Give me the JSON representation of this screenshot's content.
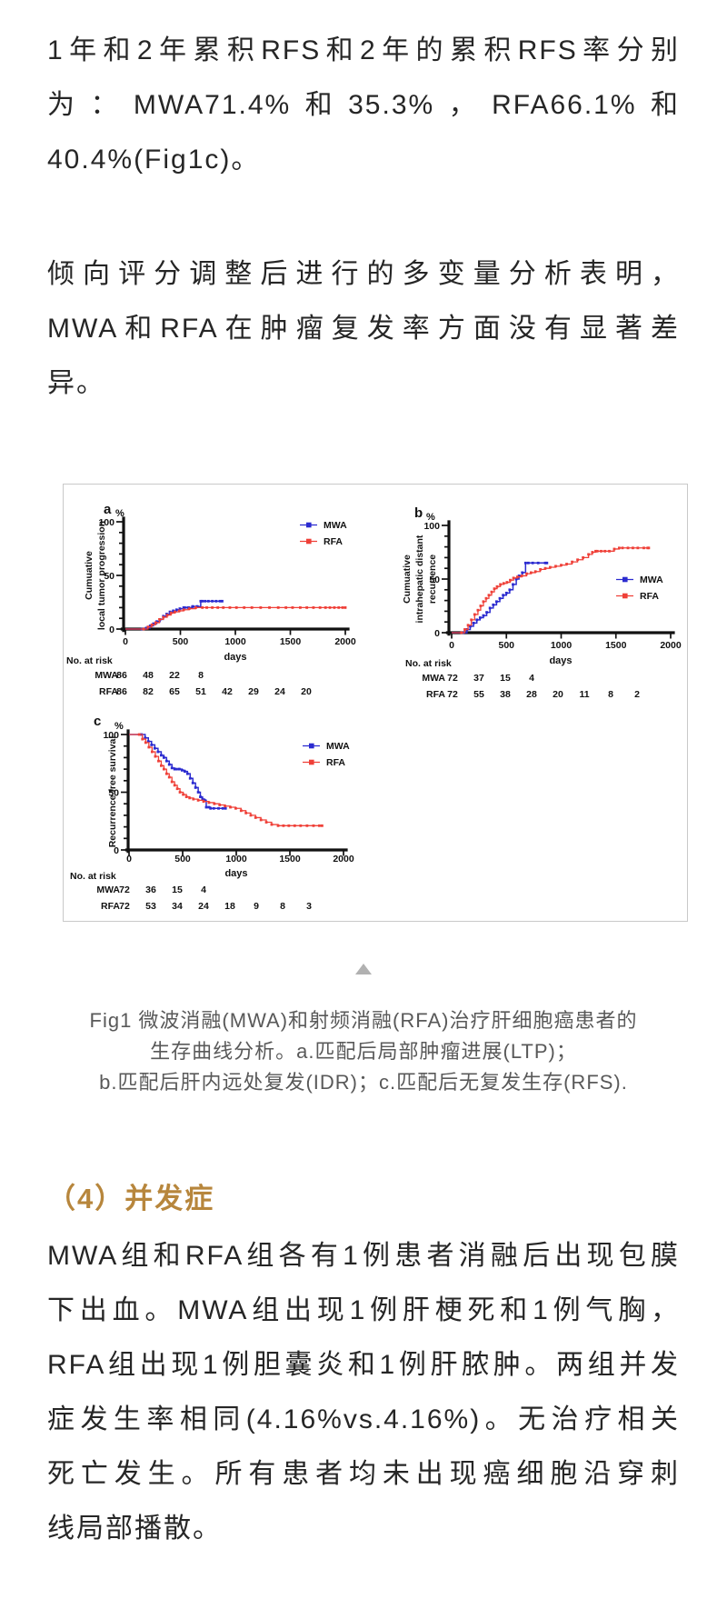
{
  "page": {
    "background": "#ffffff",
    "body_text_color": "#262626",
    "heading_color": "#b7863c",
    "caption_color": "#595959"
  },
  "paragraphs": {
    "rfs_rates": {
      "lines": [
        "1年和2年累积RFS和2年的累积RFS率分别",
        "为：MWA71.4%和35.3%，RFA66.1%和",
        "40.4%(Fig1c)。"
      ]
    },
    "multivariate": {
      "lines": [
        "倾向评分调整后进行的多变量分析表明，",
        "MWA和RFA在肿瘤复发率方面没有显著差",
        "异。"
      ]
    },
    "complications": {
      "lines": [
        "MWA组和RFA组各有1例患者消融后出现包膜",
        "下出血。MWA组出现1例肝梗死和1例气胸，",
        "RFA组出现1例胆囊炎和1例肝脓肿。两组并发",
        "症发生率相同(4.16%vs.4.16%)。无治疗相关",
        "死亡发生。所有患者均未出现癌细胞沿穿刺",
        "线局部播散。"
      ]
    }
  },
  "section": {
    "heading": "（4）并发症"
  },
  "figure_caption": {
    "lines": [
      "Fig1 微波消融(MWA)和射频消融(RFA)治疗肝细胞癌患者的",
      "生存曲线分析。a.匹配后局部肿瘤进展(LTP)；",
      "b.匹配后肝内远处复发(IDR)；c.匹配后无复发生存(RFS)."
    ]
  },
  "chart_data": {
    "type": "line",
    "style": "kaplan-meier step curves, GraphPad look",
    "x_ticks": [
      0,
      500,
      1000,
      1500,
      2000
    ],
    "y_ticks": [
      0,
      50,
      100
    ],
    "xlabel": "days",
    "y_unit": "%",
    "xlim": [
      0,
      2000
    ],
    "ylim": [
      0,
      100
    ],
    "at_risk_title": "No. at risk",
    "colors": {
      "MWA": "#2b2bd0",
      "RFA": "#ef4038"
    },
    "panels": [
      {
        "letter": "a",
        "ylabel_lines": [
          "Cumuative",
          "local tumor progression"
        ],
        "legend": [
          "MWA",
          "RFA"
        ],
        "series": [
          {
            "name": "MWA",
            "steps": [
              [
                0,
                0
              ],
              [
                150,
                0
              ],
              [
                190,
                1
              ],
              [
                225,
                3
              ],
              [
                255,
                5
              ],
              [
                285,
                7
              ],
              [
                315,
                9
              ],
              [
                345,
                12
              ],
              [
                375,
                14
              ],
              [
                405,
                16
              ],
              [
                435,
                17
              ],
              [
                465,
                18
              ],
              [
                495,
                19
              ],
              [
                530,
                20
              ],
              [
                570,
                20
              ],
              [
                610,
                21
              ],
              [
                650,
                21
              ],
              [
                685,
                26
              ],
              [
                880,
                26
              ]
            ],
            "censors": [
              540,
              575,
              615,
              655,
              700,
              725,
              755,
              790,
              825,
              860
            ]
          },
          {
            "name": "RFA",
            "steps": [
              [
                0,
                0
              ],
              [
                165,
                0
              ],
              [
                205,
                2
              ],
              [
                240,
                4
              ],
              [
                275,
                6
              ],
              [
                310,
                9
              ],
              [
                345,
                11
              ],
              [
                380,
                13
              ],
              [
                415,
                15
              ],
              [
                450,
                16
              ],
              [
                490,
                17
              ],
              [
                530,
                18
              ],
              [
                580,
                19
              ],
              [
                640,
                20
              ],
              [
                2000,
                20
              ]
            ],
            "censors": [
              700,
              740,
              790,
              840,
              890,
              950,
              1010,
              1080,
              1150,
              1230,
              1310,
              1390,
              1460,
              1520,
              1590,
              1650,
              1710,
              1770,
              1820,
              1860,
              1900,
              1940,
              1975
            ]
          }
        ],
        "at_risk": {
          "rows": [
            {
              "name": "MWA",
              "values": [
                86,
                48,
                22,
                8
              ]
            },
            {
              "name": "RFA",
              "values": [
                86,
                82,
                65,
                51,
                42,
                29,
                24,
                20
              ]
            }
          ]
        }
      },
      {
        "letter": "b",
        "ylabel_lines": [
          "Cumuative",
          "intrahepatic distant",
          "recurrence"
        ],
        "legend": [
          "MWA",
          "RFA"
        ],
        "series": [
          {
            "name": "MWA",
            "steps": [
              [
                0,
                0
              ],
              [
                105,
                0
              ],
              [
                140,
                3
              ],
              [
                170,
                6
              ],
              [
                200,
                9
              ],
              [
                230,
                12
              ],
              [
                260,
                14
              ],
              [
                290,
                16
              ],
              [
                320,
                19
              ],
              [
                350,
                23
              ],
              [
                380,
                26
              ],
              [
                410,
                29
              ],
              [
                440,
                32
              ],
              [
                470,
                35
              ],
              [
                500,
                37
              ],
              [
                530,
                40
              ],
              [
                560,
                45
              ],
              [
                590,
                50
              ],
              [
                615,
                53
              ],
              [
                645,
                56
              ],
              [
                675,
                65
              ],
              [
                870,
                65
              ]
            ],
            "censors": [
              700,
              740,
              790,
              855
            ]
          },
          {
            "name": "RFA",
            "steps": [
              [
                0,
                0
              ],
              [
                90,
                0
              ],
              [
                120,
                3
              ],
              [
                150,
                7
              ],
              [
                180,
                12
              ],
              [
                210,
                17
              ],
              [
                240,
                21
              ],
              [
                265,
                25
              ],
              [
                290,
                29
              ],
              [
                315,
                32
              ],
              [
                340,
                35
              ],
              [
                365,
                38
              ],
              [
                390,
                41
              ],
              [
                415,
                43
              ],
              [
                445,
                45
              ],
              [
                475,
                46
              ],
              [
                505,
                47
              ],
              [
                535,
                49
              ],
              [
                565,
                51
              ],
              [
                600,
                52
              ],
              [
                640,
                53
              ],
              [
                685,
                55
              ],
              [
                725,
                56
              ],
              [
                765,
                57
              ],
              [
                810,
                59
              ],
              [
                855,
                60
              ],
              [
                900,
                61
              ],
              [
                950,
                62
              ],
              [
                1000,
                63
              ],
              [
                1050,
                64
              ],
              [
                1100,
                66
              ],
              [
                1150,
                68
              ],
              [
                1200,
                70
              ],
              [
                1250,
                73
              ],
              [
                1285,
                75
              ],
              [
                1315,
                76
              ],
              [
                1440,
                76
              ],
              [
                1485,
                78
              ],
              [
                1530,
                79
              ],
              [
                1800,
                79
              ]
            ],
            "censors": [
              1330,
              1365,
              1400,
              1560,
              1610,
              1655,
              1700,
              1755,
              1790
            ]
          }
        ],
        "at_risk": {
          "rows": [
            {
              "name": "MWA",
              "values": [
                72,
                37,
                15,
                4
              ]
            },
            {
              "name": "RFA",
              "values": [
                72,
                55,
                38,
                28,
                20,
                11,
                8,
                2
              ]
            }
          ]
        }
      },
      {
        "letter": "c",
        "ylabel_lines": [
          "Recurrence free survival"
        ],
        "legend": [
          "MWA",
          "RFA"
        ],
        "series": [
          {
            "name": "MWA",
            "steps": [
              [
                0,
                100
              ],
              [
                115,
                100
              ],
              [
                150,
                97
              ],
              [
                180,
                94
              ],
              [
                210,
                91
              ],
              [
                240,
                88
              ],
              [
                270,
                85
              ],
              [
                300,
                82
              ],
              [
                325,
                80
              ],
              [
                350,
                77
              ],
              [
                375,
                74
              ],
              [
                400,
                71
              ],
              [
                425,
                70
              ],
              [
                465,
                70
              ],
              [
                495,
                69
              ],
              [
                520,
                68
              ],
              [
                545,
                66
              ],
              [
                570,
                62
              ],
              [
                595,
                58
              ],
              [
                620,
                54
              ],
              [
                645,
                50
              ],
              [
                665,
                46
              ],
              [
                685,
                44
              ],
              [
                705,
                43
              ],
              [
                720,
                37
              ],
              [
                760,
                36
              ],
              [
                900,
                36
              ]
            ],
            "censors": [
              440,
              470,
              745,
              790,
              835,
              875
            ]
          },
          {
            "name": "RFA",
            "steps": [
              [
                0,
                100
              ],
              [
                95,
                100
              ],
              [
                125,
                96
              ],
              [
                155,
                93
              ],
              [
                185,
                89
              ],
              [
                215,
                85
              ],
              [
                245,
                81
              ],
              [
                275,
                77
              ],
              [
                300,
                73
              ],
              [
                325,
                70
              ],
              [
                350,
                66
              ],
              [
                375,
                63
              ],
              [
                400,
                59
              ],
              [
                425,
                56
              ],
              [
                450,
                53
              ],
              [
                475,
                50
              ],
              [
                505,
                48
              ],
              [
                535,
                46
              ],
              [
                565,
                45
              ],
              [
                600,
                44
              ],
              [
                645,
                43
              ],
              [
                695,
                42
              ],
              [
                745,
                41
              ],
              [
                795,
                40
              ],
              [
                845,
                39
              ],
              [
                895,
                38
              ],
              [
                945,
                37
              ],
              [
                995,
                36
              ],
              [
                1045,
                34
              ],
              [
                1090,
                32
              ],
              [
                1135,
                30
              ],
              [
                1180,
                28
              ],
              [
                1230,
                26
              ],
              [
                1280,
                24
              ],
              [
                1330,
                22
              ],
              [
                1390,
                21
              ],
              [
                1800,
                21
              ]
            ],
            "censors": [
              1440,
              1490,
              1545,
              1600,
              1660,
              1720,
              1775
            ]
          }
        ],
        "at_risk": {
          "rows": [
            {
              "name": "MWA",
              "values": [
                72,
                36,
                15,
                4
              ]
            },
            {
              "name": "RFA",
              "values": [
                72,
                53,
                34,
                24,
                18,
                9,
                8,
                3
              ]
            }
          ]
        }
      }
    ]
  }
}
